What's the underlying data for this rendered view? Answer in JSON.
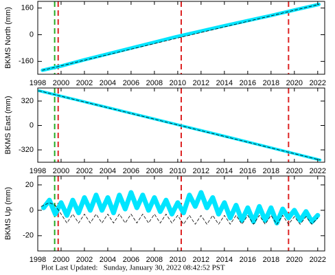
{
  "chart_data": [
    {
      "type": "line",
      "ylabel": "BKMS North (mm)",
      "xlim": [
        1998,
        2022.6
      ],
      "xticks": [
        1998,
        2000,
        2002,
        2004,
        2006,
        2008,
        2010,
        2012,
        2014,
        2016,
        2018,
        2020,
        2022
      ],
      "ylim": [
        -237,
        200
      ],
      "yticks": [
        160,
        0,
        -160
      ],
      "vlines": [
        {
          "x": 1999.45,
          "color": "#22aa22"
        },
        {
          "x": 1999.75,
          "color": "#dd2222"
        },
        {
          "x": 2010.3,
          "color": "#dd2222"
        },
        {
          "x": 2019.5,
          "color": "#dd2222"
        }
      ],
      "series": [
        {
          "color": "#00e5ff",
          "width": 5,
          "dash": false,
          "x": [
            1998.4,
            2000,
            2002,
            2004,
            2006,
            2008,
            2010,
            2012,
            2014,
            2016,
            2018,
            2020,
            2022.1
          ],
          "values": [
            -213,
            -188,
            -150,
            -115,
            -80,
            -45,
            -10,
            22,
            54,
            85,
            115,
            148,
            182
          ]
        },
        {
          "color": "#000000",
          "width": 0.8,
          "dash": true,
          "x": [
            1998.4,
            2022.1
          ],
          "values": [
            -213,
            182
          ]
        }
      ]
    },
    {
      "type": "line",
      "ylabel": "BKMS East (mm)",
      "xlim": [
        1998,
        2022.6
      ],
      "xticks": [
        1998,
        2000,
        2002,
        2004,
        2006,
        2008,
        2010,
        2012,
        2014,
        2016,
        2018,
        2020,
        2022
      ],
      "ylim": [
        -482,
        491
      ],
      "yticks": [
        320,
        0,
        -320
      ],
      "vlines": [
        {
          "x": 1999.45,
          "color": "#22aa22"
        },
        {
          "x": 1999.75,
          "color": "#dd2222"
        },
        {
          "x": 2010.3,
          "color": "#dd2222"
        },
        {
          "x": 2019.5,
          "color": "#dd2222"
        }
      ],
      "series": [
        {
          "color": "#00e5ff",
          "width": 4,
          "dash": false,
          "x": [
            1998.1,
            2002,
            2006,
            2010,
            2014,
            2018,
            2022.2
          ],
          "values": [
            455,
            310,
            160,
            10,
            -140,
            -292,
            -452
          ]
        },
        {
          "color": "#000000",
          "width": 0.8,
          "dash": true,
          "x": [
            1998.1,
            2022.2
          ],
          "values": [
            455,
            -452
          ]
        }
      ]
    },
    {
      "type": "line",
      "ylabel": "BKMS Up (mm)",
      "xlim": [
        1998,
        2022.6
      ],
      "xticks": [
        1998,
        2000,
        2002,
        2004,
        2006,
        2008,
        2010,
        2012,
        2014,
        2016,
        2018,
        2020,
        2022
      ],
      "ylim": [
        -32,
        27
      ],
      "yticks": [
        20,
        0,
        -20
      ],
      "vlines": [
        {
          "x": 1999.45,
          "color": "#22aa22"
        },
        {
          "x": 1999.75,
          "color": "#dd2222"
        },
        {
          "x": 2010.3,
          "color": "#dd2222"
        },
        {
          "x": 2019.5,
          "color": "#dd2222"
        }
      ],
      "series": [
        {
          "color": "#00e5ff",
          "width": 7,
          "dash": false,
          "x": [
            1998.5,
            1999,
            1999.5,
            2000,
            2000.5,
            2001,
            2001.5,
            2002,
            2002.5,
            2003,
            2003.5,
            2004,
            2004.5,
            2005,
            2005.5,
            2006,
            2006.5,
            2007,
            2007.5,
            2008,
            2008.5,
            2009,
            2009.5,
            2010,
            2010.5,
            2011,
            2011.5,
            2012,
            2012.5,
            2013,
            2013.5,
            2014,
            2014.5,
            2015,
            2015.5,
            2016,
            2016.5,
            2017,
            2017.5,
            2018,
            2018.5,
            2019,
            2019.5,
            2020,
            2020.5,
            2021,
            2021.5,
            2022
          ],
          "values": [
            2,
            8,
            -3,
            6,
            -4,
            8,
            -2,
            10,
            0,
            12,
            0,
            10,
            -2,
            12,
            1,
            14,
            2,
            12,
            0,
            10,
            -1,
            8,
            -3,
            6,
            -2,
            12,
            3,
            14,
            2,
            10,
            -3,
            6,
            -6,
            4,
            -8,
            2,
            -9,
            3,
            -8,
            2,
            -10,
            1,
            -6,
            0,
            -8,
            -1,
            -9,
            -4
          ]
        },
        {
          "color": "#000000",
          "width": 0.8,
          "dash": true,
          "x": [
            1998.3,
            1999,
            1999.5,
            2000,
            2000.5,
            2001,
            2001.5,
            2002,
            2002.5,
            2003,
            2003.5,
            2004,
            2004.5,
            2005,
            2005.5,
            2006,
            2006.5,
            2007,
            2007.5,
            2008,
            2008.5,
            2009,
            2009.5,
            2010,
            2010.5,
            2011,
            2011.5,
            2012,
            2012.5,
            2013,
            2013.5,
            2014,
            2014.5,
            2015,
            2015.5,
            2016,
            2016.5,
            2017,
            2017.5,
            2018,
            2018.5,
            2019,
            2019.5,
            2020,
            2020.5,
            2021,
            2021.5,
            2022
          ],
          "values": [
            3,
            6,
            4,
            -3,
            -10,
            -3,
            -10,
            -3,
            -10,
            -3,
            -10,
            -3,
            -10,
            -3,
            -10,
            -3,
            -10,
            -3,
            -10,
            -3,
            -10,
            -3,
            -10,
            -4,
            -11,
            -4,
            -11,
            -4,
            -11,
            -4,
            -11,
            -4,
            -11,
            -4,
            -11,
            -4,
            -11,
            -4,
            -11,
            -4,
            -11,
            -4,
            -11,
            -5,
            -11,
            -5,
            -11,
            -6
          ]
        }
      ]
    }
  ],
  "footer": "Plot Last Updated:   Sunday, January 30, 2022 08:42:52 PST"
}
